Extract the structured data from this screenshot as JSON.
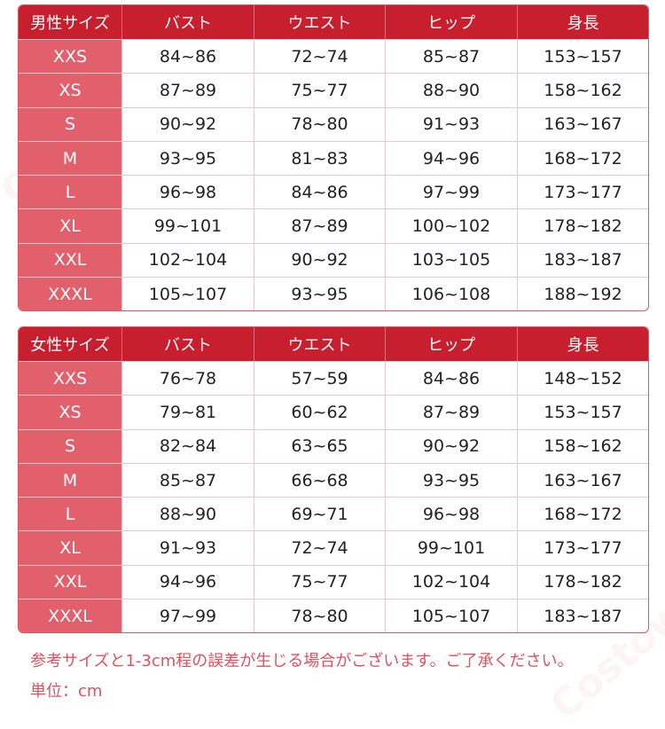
{
  "watermark": "Costowns",
  "men_table": {
    "headers": [
      "男性サイズ",
      "バスト",
      "ウエスト",
      "ヒップ",
      "身長"
    ],
    "rows": [
      [
        "XXS",
        "84~86",
        "72~74",
        "85~87",
        "153~157"
      ],
      [
        "XS",
        "87~89",
        "75~77",
        "88~90",
        "158~162"
      ],
      [
        "S",
        "90~92",
        "78~80",
        "91~93",
        "163~167"
      ],
      [
        "M",
        "93~95",
        "81~83",
        "94~96",
        "168~172"
      ],
      [
        "L",
        "96~98",
        "84~86",
        "97~99",
        "173~177"
      ],
      [
        "XL",
        "99~101",
        "87~89",
        "100~102",
        "178~182"
      ],
      [
        "XXL",
        "102~104",
        "90~92",
        "103~105",
        "183~187"
      ],
      [
        "XXXL",
        "105~107",
        "93~95",
        "106~108",
        "188~192"
      ]
    ]
  },
  "women_table": {
    "headers": [
      "女性サイズ",
      "バスト",
      "ウエスト",
      "ヒップ",
      "身長"
    ],
    "rows": [
      [
        "XXS",
        "76~78",
        "57~59",
        "84~86",
        "148~152"
      ],
      [
        "XS",
        "79~81",
        "60~62",
        "87~89",
        "153~157"
      ],
      [
        "S",
        "82~84",
        "63~65",
        "90~92",
        "158~162"
      ],
      [
        "M",
        "85~87",
        "66~68",
        "93~95",
        "163~167"
      ],
      [
        "L",
        "88~90",
        "69~71",
        "96~98",
        "168~172"
      ],
      [
        "XL",
        "91~93",
        "72~74",
        "99~101",
        "173~177"
      ],
      [
        "XXL",
        "94~96",
        "75~77",
        "102~104",
        "178~182"
      ],
      [
        "XXXL",
        "97~99",
        "78~80",
        "105~107",
        "183~187"
      ]
    ]
  },
  "notes": {
    "disclaimer": "参考サイズと1-3cm程の誤差が生じる場合がございます。ご了承ください。",
    "unit": "単位：cm"
  },
  "colors": {
    "header": "#c81f2e",
    "size_column": "#e2606b",
    "note_text": "#e0505f"
  }
}
